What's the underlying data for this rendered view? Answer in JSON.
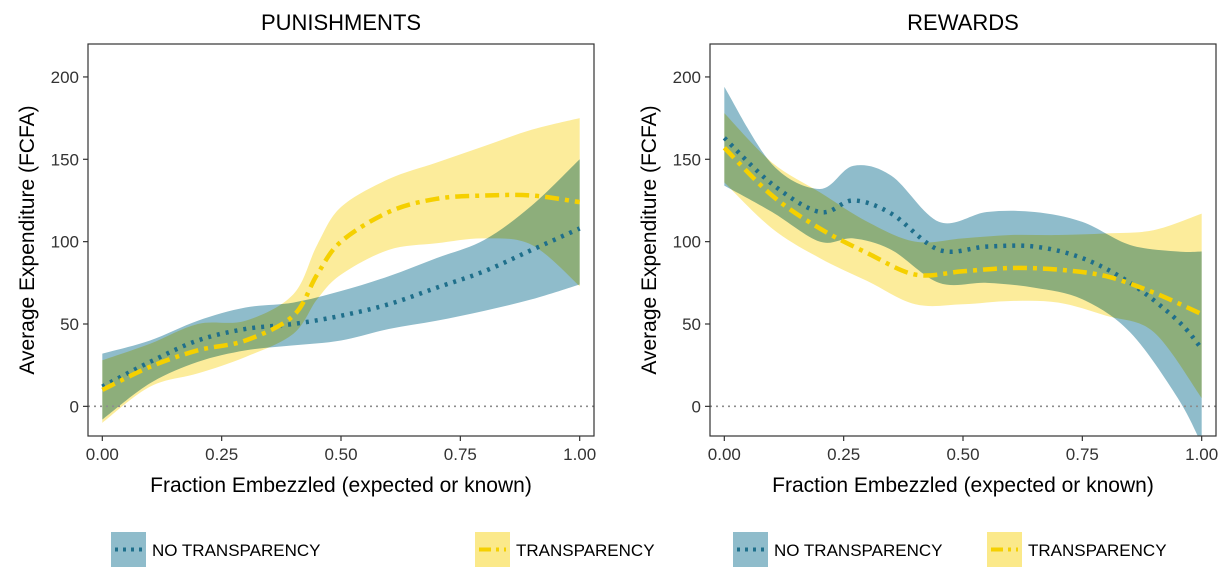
{
  "colors": {
    "no_transparency": "#1f6f8b",
    "no_transparency_band": "#8fbccb",
    "transparency": "#f5d000",
    "transparency_band": "#fbe98a",
    "overlap_band": "#a8b36a"
  },
  "legend": {
    "no_transparency": "NO TRANSPARENCY",
    "transparency": "TRANSPARENCY"
  },
  "chart_data": [
    {
      "type": "line",
      "title": "PUNISHMENTS",
      "xlabel": "Fraction Embezzled (expected or known)",
      "ylabel": "Average Expenditure (FCFA)",
      "xlim": [
        -0.03,
        1.03
      ],
      "ylim": [
        -18,
        220
      ],
      "xticks": [
        "0.00",
        "0.25",
        "0.50",
        "0.75",
        "1.00"
      ],
      "yticks": [
        "0",
        "50",
        "100",
        "150",
        "200"
      ],
      "hline": 0,
      "series": [
        {
          "name": "NO TRANSPARENCY",
          "x": [
            0.0,
            0.1,
            0.2,
            0.3,
            0.4,
            0.5,
            0.6,
            0.7,
            0.8,
            0.9,
            1.0
          ],
          "y": [
            12,
            27,
            40,
            47,
            50,
            55,
            62,
            72,
            82,
            95,
            108
          ],
          "lower": [
            -8,
            14,
            27,
            34,
            37,
            40,
            47,
            52,
            58,
            65,
            74
          ],
          "upper": [
            32,
            40,
            52,
            60,
            63,
            70,
            79,
            90,
            101,
            122,
            150
          ]
        },
        {
          "name": "TRANSPARENCY",
          "x": [
            0.0,
            0.1,
            0.2,
            0.3,
            0.4,
            0.45,
            0.5,
            0.6,
            0.7,
            0.8,
            0.9,
            1.0
          ],
          "y": [
            10,
            24,
            34,
            40,
            55,
            80,
            100,
            118,
            126,
            128,
            128,
            124
          ],
          "lower": [
            -10,
            12,
            20,
            30,
            44,
            65,
            80,
            95,
            99,
            102,
            98,
            73
          ],
          "upper": [
            28,
            38,
            50,
            52,
            68,
            98,
            121,
            138,
            148,
            158,
            168,
            175
          ]
        }
      ]
    },
    {
      "type": "line",
      "title": "REWARDS",
      "xlabel": "Fraction Embezzled (expected or known)",
      "ylabel": "Average Expenditure (FCFA)",
      "xlim": [
        -0.03,
        1.03
      ],
      "ylim": [
        -18,
        220
      ],
      "xticks": [
        "0.00",
        "0.25",
        "0.50",
        "0.75",
        "1.00"
      ],
      "yticks": [
        "0",
        "50",
        "100",
        "150",
        "200"
      ],
      "hline": 0,
      "series": [
        {
          "name": "NO TRANSPARENCY",
          "x": [
            0.0,
            0.1,
            0.2,
            0.27,
            0.35,
            0.45,
            0.55,
            0.65,
            0.75,
            0.85,
            0.95,
            1.0
          ],
          "y": [
            163,
            135,
            118,
            125,
            117,
            95,
            97,
            97,
            90,
            75,
            52,
            35
          ],
          "lower": [
            134,
            118,
            100,
            102,
            95,
            75,
            75,
            72,
            65,
            45,
            5,
            -23
          ],
          "upper": [
            194,
            147,
            132,
            146,
            140,
            112,
            118,
            118,
            112,
            98,
            94,
            94
          ]
        },
        {
          "name": "TRANSPARENCY",
          "x": [
            0.0,
            0.1,
            0.2,
            0.3,
            0.4,
            0.5,
            0.6,
            0.7,
            0.8,
            0.9,
            1.0
          ],
          "y": [
            157,
            128,
            108,
            93,
            80,
            82,
            84,
            83,
            79,
            69,
            56
          ],
          "lower": [
            136,
            108,
            90,
            76,
            62,
            62,
            64,
            63,
            55,
            45,
            5
          ],
          "upper": [
            178,
            148,
            130,
            112,
            100,
            102,
            104,
            104,
            105,
            107,
            117
          ]
        }
      ]
    }
  ]
}
